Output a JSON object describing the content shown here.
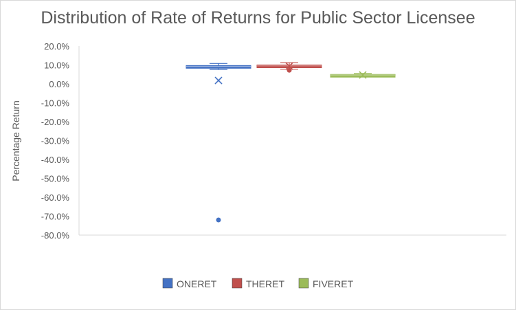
{
  "chart_data": {
    "type": "box",
    "title": "Distribution of Rate of Returns for Public Sector Licensee",
    "ylabel": "Percentage Return",
    "xlabel": "",
    "ylim": [
      -0.8,
      0.2
    ],
    "yticks": [
      0.2,
      0.1,
      0.0,
      -0.1,
      -0.2,
      -0.3,
      -0.4,
      -0.5,
      -0.6,
      -0.7,
      -0.8
    ],
    "ytick_labels": [
      "20.0%",
      "10.0%",
      "0.0%",
      "-10.0%",
      "-20.0%",
      "-30.0%",
      "-40.0%",
      "-50.0%",
      "-60.0%",
      "-70.0%",
      "-80.0%"
    ],
    "grid": false,
    "legend_position": "bottom",
    "series": [
      {
        "name": "ONERET",
        "color": "#4472c4",
        "whisker_low": 0.076,
        "q1": 0.087,
        "median": 0.092,
        "q3": 0.097,
        "whisker_high": 0.108,
        "mean": 0.018,
        "outliers": [
          -0.72
        ]
      },
      {
        "name": "THERET",
        "color": "#c0504d",
        "whisker_low": 0.078,
        "q1": 0.09,
        "median": 0.095,
        "q3": 0.1,
        "whisker_high": 0.112,
        "mean": 0.094,
        "outliers": [
          0.072
        ]
      },
      {
        "name": "FIVERET",
        "color": "#9bbb59",
        "whisker_low": 0.04,
        "q1": 0.044,
        "median": 0.047,
        "q3": 0.05,
        "whisker_high": 0.055,
        "mean": 0.047,
        "outliers": []
      }
    ]
  }
}
